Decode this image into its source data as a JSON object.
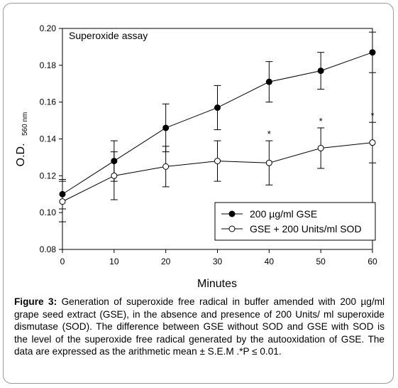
{
  "chart_data": {
    "type": "line",
    "title": "Superoxide assay",
    "xlabel": "Minutes",
    "ylabel": "O.D.",
    "ylabel_sub": "560 nm",
    "xlim": [
      0,
      60
    ],
    "ylim": [
      0.08,
      0.2
    ],
    "x_ticks": [
      "0",
      "10",
      "20",
      "30",
      "40",
      "50",
      "60"
    ],
    "y_ticks": [
      "0.08",
      "0.10",
      "0.12",
      "0.14",
      "0.16",
      "0.18",
      "0.20"
    ],
    "x": [
      0,
      10,
      20,
      30,
      40,
      50,
      60
    ],
    "legend_position": "bottom-right",
    "grid": false,
    "series": [
      {
        "name": "200  µg/ml GSE",
        "marker": "filled-circle",
        "values": [
          0.11,
          0.128,
          0.146,
          0.157,
          0.171,
          0.177,
          0.187
        ],
        "error": [
          0.008,
          0.011,
          0.013,
          0.012,
          0.011,
          0.01,
          0.011
        ]
      },
      {
        "name": "GSE + 200 Units/ml SOD",
        "marker": "open-circle",
        "values": [
          0.106,
          0.12,
          0.125,
          0.128,
          0.127,
          0.135,
          0.138
        ],
        "error": [
          0.011,
          0.013,
          0.011,
          0.011,
          0.012,
          0.011,
          0.011
        ]
      }
    ],
    "annotations": [
      {
        "x": 40,
        "text": "*"
      },
      {
        "x": 50,
        "text": "*"
      },
      {
        "x": 60,
        "text": "*"
      }
    ]
  },
  "caption": {
    "label": "Figure 3:",
    "text": " Generation of superoxide free radical in buffer amended with 200 µg/ml grape seed extract (GSE), in the absence and presence of 200 Units/ ml superoxide dismutase (SOD). The difference between GSE without SOD and GSE with SOD is the level of the superoxide free radical generated by the autooxidation of GSE. The data are expressed as the arithmetic mean ± S.E.M .*P ≤ 0.01."
  }
}
